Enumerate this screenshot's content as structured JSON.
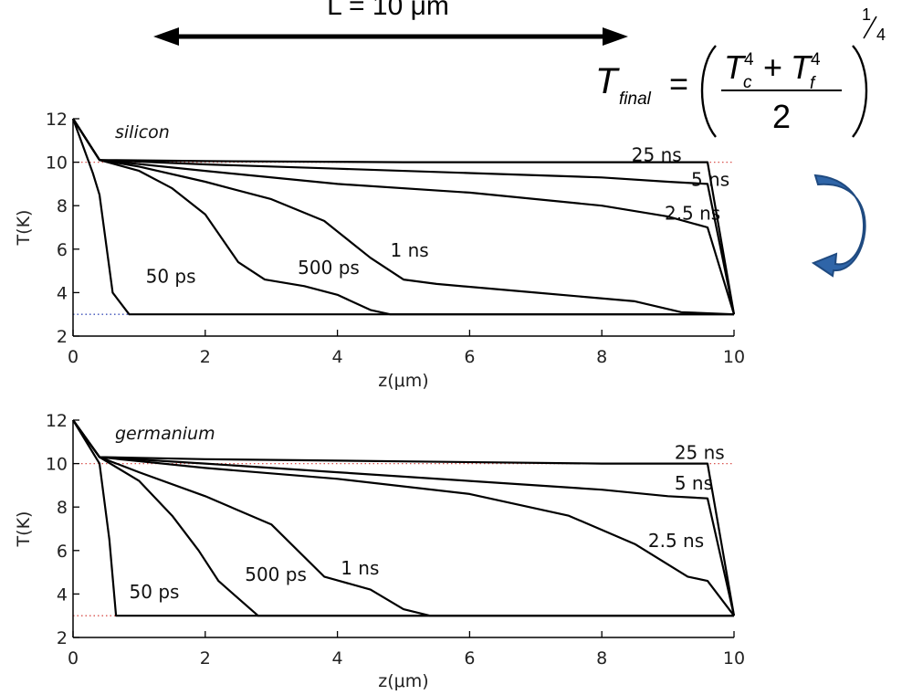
{
  "banner": {
    "label": "L = 10 μm"
  },
  "equation": {
    "lhs": "T",
    "lhs_sub": "final",
    "equals": "=",
    "num_t1": "T",
    "num_t1_sup": "4",
    "num_t1_sub": "c",
    "num_plus": "+",
    "num_t2": "T",
    "num_t2_sup": "4",
    "num_t2_sub": "f",
    "denominator": "2",
    "exp_num": "1",
    "exp_den": "4"
  },
  "colors": {
    "curve": "#000000",
    "ref_hot": "#d9534f",
    "ref_cold": "#3b4fb8",
    "arrow_fill": "#2f65a8",
    "arrow_edge": "#1f4a80"
  },
  "chart_data": [
    {
      "type": "line",
      "annotation": "silicon",
      "xlabel": "z(μm)",
      "ylabel": "T(K)",
      "xlim": [
        0,
        10
      ],
      "ylim": [
        2,
        12
      ],
      "xticks": [
        0,
        2,
        4,
        6,
        8,
        10
      ],
      "yticks": [
        2,
        4,
        6,
        8,
        10,
        12
      ],
      "reference_lines": [
        {
          "y": 10,
          "color": "red",
          "style": "dotted"
        },
        {
          "y": 3,
          "color": "blue",
          "style": "dotted"
        }
      ],
      "series": [
        {
          "name": "50 ps",
          "x": [
            0,
            0.3,
            0.4,
            0.6,
            0.85,
            1.0,
            10
          ],
          "y": [
            12,
            9.5,
            8.5,
            4.0,
            3.0,
            3.0,
            3.0
          ],
          "label_at": [
            1.1,
            4.75
          ]
        },
        {
          "name": "500 ps",
          "x": [
            0,
            0.4,
            1.0,
            1.5,
            2.0,
            2.5,
            2.9,
            3.5,
            4.0,
            4.5,
            4.8,
            10
          ],
          "y": [
            12,
            10.1,
            9.6,
            8.8,
            7.6,
            5.4,
            4.6,
            4.3,
            3.9,
            3.2,
            3.0,
            3.0
          ],
          "label_at": [
            3.4,
            5.15
          ]
        },
        {
          "name": "1 ns",
          "x": [
            0,
            0.4,
            1.0,
            2.0,
            3.0,
            3.8,
            4.5,
            5.0,
            5.5,
            7.0,
            8.5,
            9.2,
            10
          ],
          "y": [
            12,
            10.1,
            9.8,
            9.1,
            8.3,
            7.3,
            5.6,
            4.6,
            4.4,
            4.0,
            3.6,
            3.1,
            3.0
          ],
          "label_at": [
            4.8,
            5.95
          ]
        },
        {
          "name": "2.5 ns",
          "x": [
            0,
            0.4,
            2.0,
            4.0,
            6.0,
            8.0,
            9.0,
            9.6,
            10
          ],
          "y": [
            12,
            10.1,
            9.6,
            9.0,
            8.6,
            8.0,
            7.5,
            7.0,
            3.0
          ],
          "label_at": [
            8.95,
            7.65
          ]
        },
        {
          "name": "5 ns",
          "x": [
            0,
            0.4,
            2.0,
            4.0,
            6.0,
            8.0,
            9.0,
            9.6,
            10
          ],
          "y": [
            12,
            10.1,
            9.9,
            9.7,
            9.5,
            9.3,
            9.1,
            9.0,
            3.0
          ],
          "label_at": [
            9.35,
            9.2
          ]
        },
        {
          "name": "25 ns",
          "x": [
            0,
            0.4,
            2.0,
            5.0,
            8.0,
            9.6,
            10
          ],
          "y": [
            12,
            10.1,
            10.05,
            10.0,
            10.0,
            10.0,
            3.0
          ],
          "label_at": [
            8.45,
            10.35
          ]
        }
      ]
    },
    {
      "type": "line",
      "annotation": "germanium",
      "xlabel": "z(μm)",
      "ylabel": "T(K)",
      "xlim": [
        0,
        10
      ],
      "ylim": [
        2,
        12
      ],
      "xticks": [
        0,
        2,
        4,
        6,
        8,
        10
      ],
      "yticks": [
        2,
        4,
        6,
        8,
        10,
        12
      ],
      "reference_lines": [
        {
          "y": 10,
          "color": "red",
          "style": "dotted"
        },
        {
          "y": 3,
          "color": "red",
          "style": "dotted"
        }
      ],
      "series": [
        {
          "name": "50 ps",
          "x": [
            0,
            0.4,
            0.55,
            0.65,
            10
          ],
          "y": [
            12,
            10.0,
            6.5,
            3.0,
            3.0
          ],
          "label_at": [
            0.85,
            4.1
          ]
        },
        {
          "name": "500 ps",
          "x": [
            0,
            0.4,
            1.0,
            1.5,
            1.9,
            2.2,
            2.5,
            2.8,
            10
          ],
          "y": [
            12,
            10.3,
            9.2,
            7.6,
            6.0,
            4.6,
            3.8,
            3.0,
            3.0
          ],
          "label_at": [
            2.6,
            4.9
          ]
        },
        {
          "name": "1 ns",
          "x": [
            0,
            0.4,
            1.0,
            2.0,
            3.0,
            3.8,
            4.5,
            5.0,
            5.4,
            10
          ],
          "y": [
            12,
            10.3,
            9.6,
            8.5,
            7.2,
            4.8,
            4.2,
            3.3,
            3.0,
            3.0
          ],
          "label_at": [
            4.05,
            5.2
          ]
        },
        {
          "name": "2.5 ns",
          "x": [
            0,
            0.4,
            2.0,
            4.0,
            6.0,
            7.5,
            8.5,
            9.3,
            9.6,
            10
          ],
          "y": [
            12,
            10.3,
            9.8,
            9.3,
            8.6,
            7.6,
            6.3,
            4.8,
            4.6,
            3.0
          ],
          "label_at": [
            8.7,
            6.45
          ]
        },
        {
          "name": "5 ns",
          "x": [
            0,
            0.4,
            2.0,
            4.0,
            6.0,
            8.0,
            9.0,
            9.6,
            10
          ],
          "y": [
            12,
            10.3,
            10.0,
            9.6,
            9.2,
            8.8,
            8.5,
            8.4,
            3.0
          ],
          "label_at": [
            9.1,
            9.1
          ]
        },
        {
          "name": "25 ns",
          "x": [
            0,
            0.4,
            2.0,
            5.0,
            8.0,
            9.6,
            10
          ],
          "y": [
            12,
            10.3,
            10.2,
            10.1,
            10.0,
            10.0,
            3.0
          ],
          "label_at": [
            9.1,
            10.5
          ]
        }
      ]
    }
  ]
}
